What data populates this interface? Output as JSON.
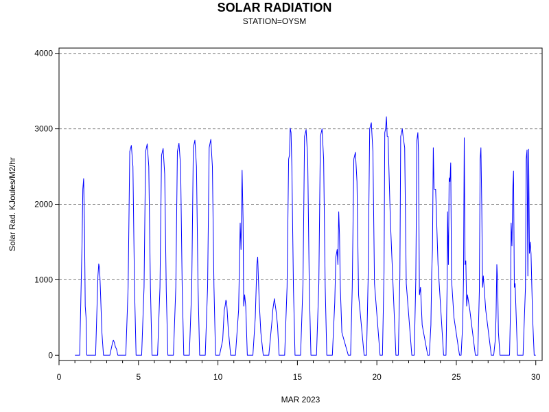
{
  "chart_data": {
    "type": "line",
    "title": "SOLAR RADIATION",
    "subtitle": "STATION=OYSM",
    "xlabel": "MAR 2023",
    "ylabel": "Solar Rad. KJoules/M2/hr",
    "xlim": [
      0,
      30.4
    ],
    "ylim": [
      -70,
      4070
    ],
    "x_ticks": [
      0,
      5,
      10,
      15,
      20,
      25,
      30
    ],
    "y_ticks": [
      0,
      1000,
      2000,
      3000,
      4000
    ],
    "grid": "horizontal dashed",
    "line_color": "#0000ff",
    "series": [
      {
        "x": [
          1.0,
          1.3,
          1.45,
          1.5,
          1.55,
          1.6,
          1.65,
          1.7,
          1.75,
          1.9,
          2.3,
          2.45,
          2.5,
          2.55,
          2.6,
          2.7,
          2.8,
          3.2,
          3.35,
          3.42,
          3.48,
          3.55,
          3.62,
          3.7,
          3.8,
          4.2,
          4.35,
          4.45,
          4.55,
          4.65,
          4.75,
          4.85,
          5.2,
          5.35,
          5.45,
          5.55,
          5.65,
          5.75,
          5.85,
          6.2,
          6.35,
          6.45,
          6.55,
          6.65,
          6.75,
          6.85,
          7.2,
          7.35,
          7.45,
          7.55,
          7.65,
          7.75,
          7.85,
          8.2,
          8.35,
          8.45,
          8.55,
          8.65,
          8.75,
          8.85,
          9.2,
          9.35,
          9.45,
          9.55,
          9.65,
          9.75,
          9.85,
          10.1,
          10.3,
          10.4,
          10.45,
          10.5,
          10.55,
          10.65,
          10.8,
          11.1,
          11.3,
          11.4,
          11.45,
          11.52,
          11.58,
          11.62,
          11.68,
          11.75,
          11.85,
          12.2,
          12.35,
          12.45,
          12.5,
          12.55,
          12.6,
          12.7,
          12.85,
          13.2,
          13.4,
          13.45,
          13.55,
          13.65,
          13.75,
          13.85,
          14.2,
          14.35,
          14.45,
          14.5,
          14.55,
          14.6,
          14.65,
          14.75,
          14.85,
          15.2,
          15.35,
          15.45,
          15.55,
          15.65,
          15.75,
          15.85,
          16.2,
          16.35,
          16.45,
          16.55,
          16.65,
          16.75,
          16.85,
          17.2,
          17.35,
          17.42,
          17.5,
          17.55,
          17.6,
          17.65,
          17.7,
          17.8,
          18.2,
          18.35,
          18.45,
          18.55,
          18.65,
          18.75,
          18.85,
          19.2,
          19.35,
          19.45,
          19.55,
          19.65,
          19.75,
          19.85,
          20.2,
          20.35,
          20.45,
          20.5,
          20.55,
          20.6,
          20.65,
          20.7,
          20.85,
          21.2,
          21.35,
          21.45,
          21.5,
          21.55,
          21.6,
          21.65,
          21.75,
          21.85,
          22.2,
          22.35,
          22.45,
          22.52,
          22.58,
          22.62,
          22.68,
          22.75,
          22.85,
          23.2,
          23.3,
          23.4,
          23.45,
          23.5,
          23.55,
          23.6,
          23.7,
          23.85,
          24.2,
          24.35,
          24.42,
          24.45,
          24.5,
          24.55,
          24.6,
          24.65,
          24.7,
          24.85,
          25.2,
          25.3,
          25.4,
          25.45,
          25.5,
          25.55,
          25.6,
          25.65,
          25.7,
          25.85,
          26.2,
          26.35,
          26.45,
          26.5,
          26.55,
          26.6,
          26.65,
          26.7,
          26.85,
          27.2,
          27.35,
          27.45,
          27.5,
          27.55,
          27.6,
          27.65,
          27.75,
          27.85,
          28.2,
          28.35,
          28.42,
          28.45,
          28.5,
          28.55,
          28.6,
          28.65,
          28.7,
          28.85,
          29.2,
          29.35,
          29.4,
          29.45,
          29.5,
          29.55,
          29.6,
          29.65,
          29.7,
          29.8,
          29.9,
          30.0
        ],
        "y": [
          0,
          0,
          1500,
          2200,
          2340,
          1700,
          650,
          500,
          0,
          0,
          0,
          1050,
          1210,
          1150,
          900,
          300,
          0,
          0,
          150,
          200,
          170,
          110,
          80,
          0,
          0,
          0,
          900,
          2700,
          2780,
          2500,
          900,
          0,
          0,
          900,
          2700,
          2800,
          2500,
          900,
          0,
          0,
          900,
          2650,
          2740,
          2400,
          850,
          0,
          0,
          900,
          2700,
          2810,
          2500,
          900,
          0,
          0,
          900,
          2750,
          2850,
          2500,
          900,
          0,
          0,
          900,
          2750,
          2860,
          2500,
          900,
          0,
          0,
          200,
          600,
          650,
          730,
          700,
          350,
          0,
          0,
          600,
          1750,
          1400,
          2450,
          1800,
          650,
          800,
          650,
          0,
          0,
          500,
          1200,
          1300,
          1000,
          700,
          300,
          0,
          0,
          450,
          600,
          750,
          600,
          400,
          0,
          0,
          900,
          2600,
          2650,
          3010,
          2950,
          2500,
          900,
          0,
          0,
          950,
          2900,
          2990,
          2600,
          900,
          0,
          0,
          950,
          2900,
          3000,
          2600,
          900,
          0,
          0,
          700,
          1300,
          1400,
          1200,
          1900,
          1600,
          900,
          300,
          0,
          0,
          900,
          2600,
          2690,
          2300,
          800,
          0,
          0,
          1000,
          3000,
          3080,
          2700,
          950,
          0,
          0,
          1100,
          2950,
          3000,
          3160,
          2900,
          2900,
          1800,
          0,
          0,
          1050,
          2900,
          2950,
          3000,
          2900,
          2750,
          950,
          0,
          0,
          1000,
          2850,
          2950,
          2700,
          800,
          900,
          400,
          0,
          0,
          400,
          1100,
          1400,
          2750,
          2200,
          2200,
          1200,
          0,
          0,
          900,
          1900,
          1200,
          2350,
          2300,
          2550,
          1000,
          500,
          0,
          0,
          400,
          1000,
          2880,
          1200,
          1250,
          650,
          800,
          600,
          0,
          0,
          850,
          2600,
          2750,
          2000,
          900,
          1050,
          600,
          0,
          0,
          200,
          500,
          1200,
          950,
          300,
          0,
          0,
          0,
          0,
          700,
          1750,
          1450,
          2200,
          2440,
          900,
          950,
          0,
          0,
          900,
          2600,
          2720,
          1050,
          2730,
          1350,
          1500,
          1350,
          500,
          0,
          0
        ]
      }
    ]
  }
}
